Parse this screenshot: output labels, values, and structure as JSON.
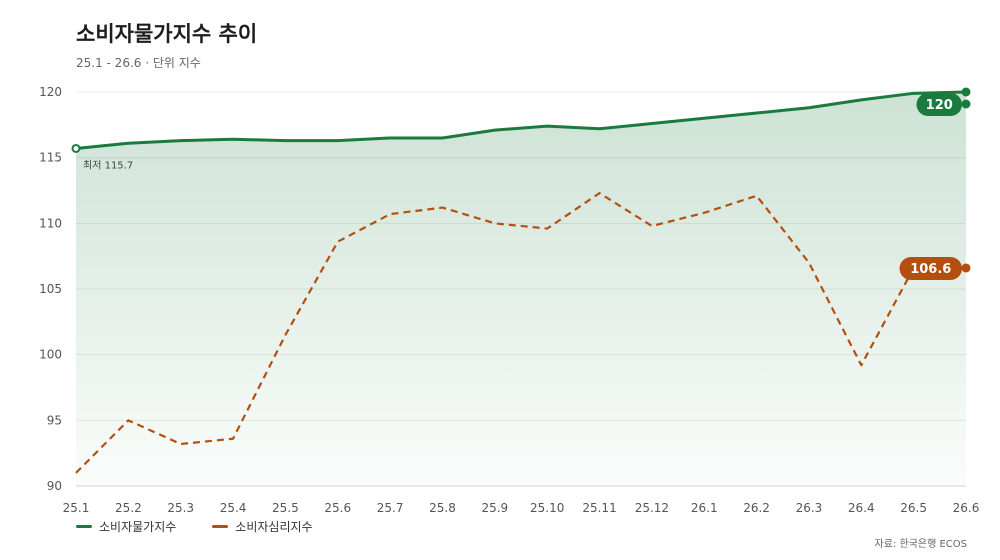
{
  "header": {
    "title": "소비자물가지수 추이",
    "subtitle": "25.1 - 26.6 · 단위 지수"
  },
  "source": "자료: 한국은행 ECOS",
  "colors": {
    "cpi": "#1b7a3e",
    "csi": "#b3500f",
    "grid": "#e6ede8"
  },
  "chart_data": {
    "type": "line",
    "title": "소비자물가지수 추이",
    "subtitle": "25.1 - 26.6 · 단위 지수",
    "xlabel": "",
    "ylabel": "",
    "ylim": [
      90,
      120
    ],
    "yticks": [
      90,
      95,
      100,
      105,
      110,
      115,
      120
    ],
    "grid": true,
    "legend_position": "bottom-left",
    "categories": [
      "25.1",
      "25.2",
      "25.3",
      "25.4",
      "25.5",
      "25.6",
      "25.7",
      "25.8",
      "25.9",
      "25.10",
      "25.11",
      "25.12",
      "26.1",
      "26.2",
      "26.3",
      "26.4",
      "26.5",
      "26.6"
    ],
    "series": [
      {
        "name": "소비자물가지수",
        "style": "solid-area",
        "values": [
          115.7,
          116.1,
          116.3,
          116.4,
          116.3,
          116.3,
          116.5,
          116.5,
          117.1,
          117.4,
          117.2,
          117.6,
          118.0,
          118.4,
          118.8,
          119.4,
          119.9,
          120.0
        ],
        "end_label": "120",
        "min_label": "최저 115.7"
      },
      {
        "name": "소비자심리지수",
        "style": "dashed",
        "values": [
          91.0,
          95.0,
          93.2,
          93.6,
          101.5,
          108.6,
          110.7,
          111.2,
          110.0,
          109.6,
          112.3,
          109.8,
          110.8,
          112.1,
          107.0,
          99.2,
          106.6,
          106.6
        ],
        "end_label": "106.6"
      }
    ]
  }
}
